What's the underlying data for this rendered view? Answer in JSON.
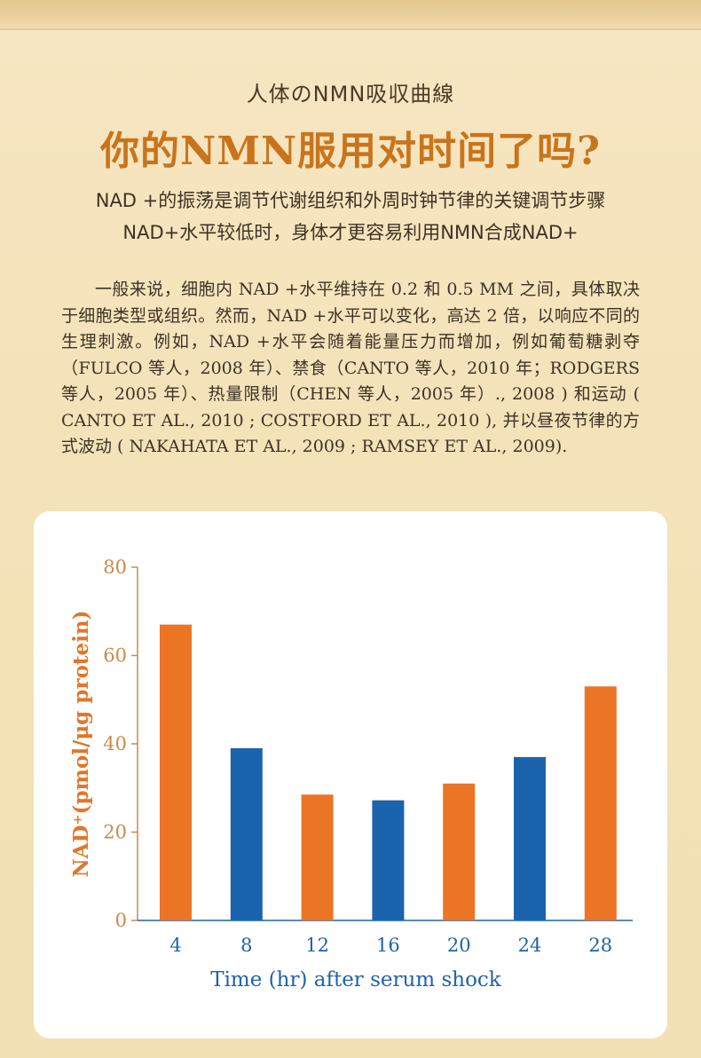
{
  "subtitle": "人体のNMN吸収曲線",
  "headline": "你的NMN服用对时间了吗?",
  "tagline1": "NAD +的振荡是调节代谢组织和外周时钟节律的关键调节步骤",
  "tagline2": "NAD+水平较低时，身体才更容易利用NMN合成NAD+",
  "body": "一般来说，细胞内 NAD +水平维持在 0.2 和 0.5 MM 之间，具体取决于细胞类型或组织。然而，NAD +水平可以变化，高达 2 倍，以响应不同的生理刺激。例如，NAD +水平会随着能量压力而增加，例如葡萄糖剥夺（FULCO 等人，2008 年）、禁食（CANTO 等人，2010 年；RODGERS 等人，2005 年）、热量限制（CHEN 等人，2005 年）., 2008 ) 和运动 ( CANTO ET AL., 2010 ; COSTFORD ET AL., 2010 ), 并以昼夜节律的方式波动 ( NAKAHATA ET AL., 2009 ; RAMSEY ET AL., 2009).",
  "colors": {
    "headline": "#c9741c",
    "axis": "#c98a4a",
    "ylabel": "#e2762a",
    "xlabel": "#1e63a8",
    "orange_bar": "#ec7425",
    "blue_bar": "#1b64ad"
  },
  "chart_data": {
    "type": "bar",
    "categories": [
      "4",
      "8",
      "12",
      "16",
      "20",
      "24",
      "28"
    ],
    "values": [
      67,
      39,
      28.5,
      27.2,
      31,
      37,
      53
    ],
    "bar_colors": [
      "orange",
      "blue",
      "orange",
      "blue",
      "orange",
      "blue",
      "orange"
    ],
    "ylim": [
      0,
      80
    ],
    "yticks": [
      "0",
      "20",
      "40",
      "60",
      "80"
    ],
    "ylabel": "NAD⁺(pmol/μg protein)",
    "xlabel": "Time (hr) after serum shock",
    "grid": false
  }
}
